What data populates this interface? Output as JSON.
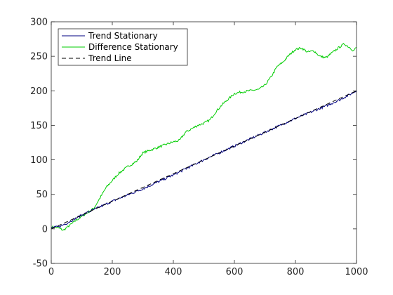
{
  "chart_data": {
    "type": "line",
    "title": "",
    "xlabel": "",
    "ylabel": "",
    "xlim": [
      0,
      1000
    ],
    "ylim": [
      -50,
      300
    ],
    "xticks": [
      0,
      200,
      400,
      600,
      800,
      1000
    ],
    "yticks": [
      -50,
      0,
      50,
      100,
      150,
      200,
      250,
      300
    ],
    "grid": false,
    "legend_position": "top-left",
    "series": [
      {
        "name": "Trend Stationary",
        "color": "#000080",
        "style": "solid",
        "noisy": true,
        "points": [
          [
            0,
            2
          ],
          [
            25,
            3
          ],
          [
            50,
            8
          ],
          [
            75,
            14
          ],
          [
            100,
            20
          ],
          [
            125,
            25
          ],
          [
            150,
            30
          ],
          [
            175,
            35
          ],
          [
            200,
            40
          ],
          [
            250,
            49
          ],
          [
            300,
            58
          ],
          [
            350,
            68
          ],
          [
            400,
            78
          ],
          [
            450,
            89
          ],
          [
            500,
            100
          ],
          [
            550,
            110
          ],
          [
            600,
            120
          ],
          [
            650,
            130
          ],
          [
            700,
            140
          ],
          [
            750,
            150
          ],
          [
            800,
            160
          ],
          [
            850,
            169
          ],
          [
            900,
            178
          ],
          [
            950,
            188
          ],
          [
            1000,
            200
          ]
        ]
      },
      {
        "name": "Difference Stationary",
        "color": "#00CC00",
        "style": "solid",
        "noisy": true,
        "points": [
          [
            0,
            3
          ],
          [
            20,
            2
          ],
          [
            40,
            -2
          ],
          [
            60,
            5
          ],
          [
            80,
            12
          ],
          [
            100,
            18
          ],
          [
            120,
            24
          ],
          [
            140,
            30
          ],
          [
            160,
            45
          ],
          [
            180,
            60
          ],
          [
            200,
            70
          ],
          [
            220,
            80
          ],
          [
            250,
            90
          ],
          [
            280,
            98
          ],
          [
            300,
            110
          ],
          [
            330,
            115
          ],
          [
            350,
            118
          ],
          [
            380,
            123
          ],
          [
            400,
            126
          ],
          [
            420,
            128
          ],
          [
            440,
            140
          ],
          [
            460,
            145
          ],
          [
            480,
            150
          ],
          [
            500,
            153
          ],
          [
            520,
            158
          ],
          [
            540,
            170
          ],
          [
            560,
            180
          ],
          [
            580,
            188
          ],
          [
            600,
            196
          ],
          [
            620,
            198
          ],
          [
            650,
            200
          ],
          [
            680,
            202
          ],
          [
            700,
            208
          ],
          [
            720,
            220
          ],
          [
            740,
            235
          ],
          [
            760,
            242
          ],
          [
            780,
            252
          ],
          [
            800,
            260
          ],
          [
            820,
            262
          ],
          [
            840,
            256
          ],
          [
            860,
            258
          ],
          [
            880,
            250
          ],
          [
            900,
            248
          ],
          [
            920,
            255
          ],
          [
            940,
            262
          ],
          [
            960,
            268
          ],
          [
            980,
            262
          ],
          [
            990,
            258
          ],
          [
            1000,
            263
          ]
        ]
      },
      {
        "name": "Trend Line",
        "color": "#000000",
        "style": "dashed",
        "noisy": false,
        "points": [
          [
            0,
            0
          ],
          [
            1000,
            200
          ]
        ]
      }
    ]
  }
}
